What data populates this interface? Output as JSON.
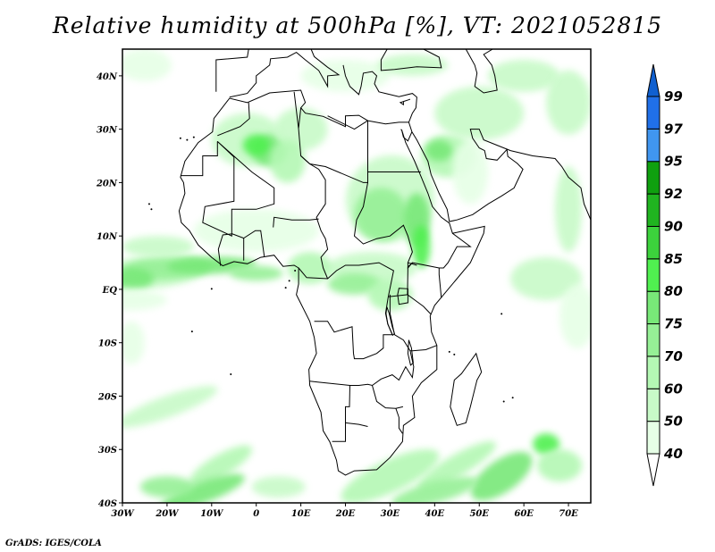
{
  "title": "Relative humidity at 500hPa [%], VT: 2021052815",
  "credit": "GrADS: IGES/COLA",
  "map": {
    "lon_range": [
      -30,
      75
    ],
    "lat_range": [
      -40,
      45
    ],
    "x_ticks": [
      {
        "value": -30,
        "label": "30W"
      },
      {
        "value": -20,
        "label": "20W"
      },
      {
        "value": -10,
        "label": "10W"
      },
      {
        "value": 0,
        "label": "0"
      },
      {
        "value": 10,
        "label": "10E"
      },
      {
        "value": 20,
        "label": "20E"
      },
      {
        "value": 30,
        "label": "30E"
      },
      {
        "value": 40,
        "label": "40E"
      },
      {
        "value": 50,
        "label": "50E"
      },
      {
        "value": 60,
        "label": "60E"
      },
      {
        "value": 70,
        "label": "70E"
      }
    ],
    "y_ticks": [
      {
        "value": 40,
        "label": "40N"
      },
      {
        "value": 30,
        "label": "30N"
      },
      {
        "value": 20,
        "label": "20N"
      },
      {
        "value": 10,
        "label": "10N"
      },
      {
        "value": 0,
        "label": "EQ"
      },
      {
        "value": -10,
        "label": "10S"
      },
      {
        "value": -20,
        "label": "20S"
      },
      {
        "value": -30,
        "label": "30S"
      },
      {
        "value": -40,
        "label": "40S"
      }
    ]
  },
  "colorbar": {
    "levels": [
      "40",
      "50",
      "60",
      "70",
      "75",
      "80",
      "85",
      "90",
      "92",
      "95",
      "97",
      "99"
    ],
    "colors": [
      "#e6ffe6",
      "#c8fac8",
      "#b4f8b4",
      "#96f096",
      "#78e878",
      "#50f050",
      "#3cd23c",
      "#20b420",
      "#0fa00f",
      "#4096f0",
      "#2070e8",
      "#1060d0"
    ],
    "below_color": "#ffffff"
  }
}
